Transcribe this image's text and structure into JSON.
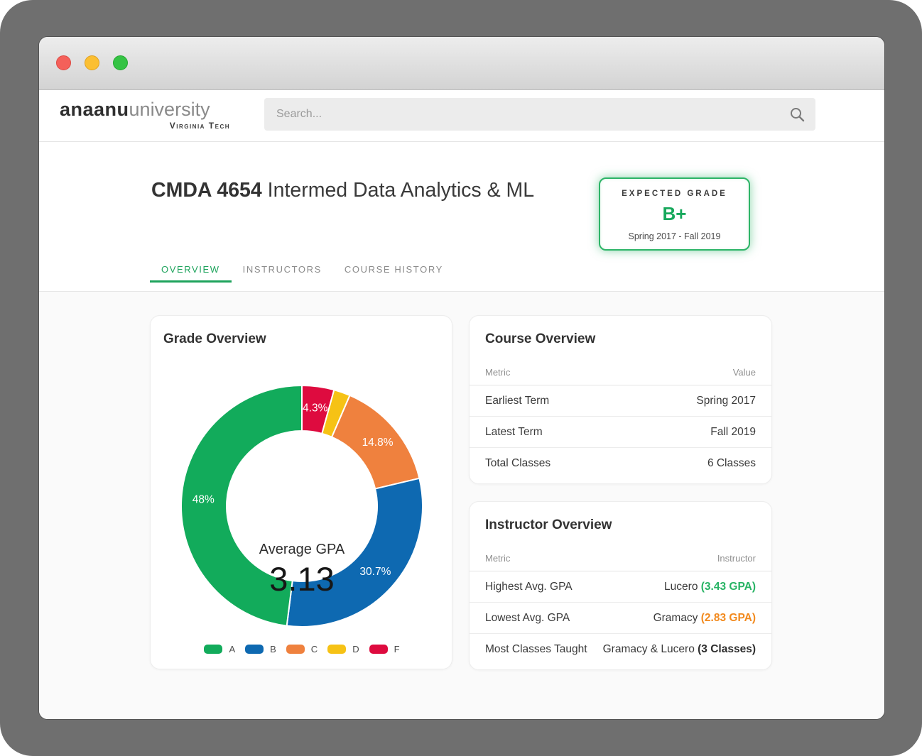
{
  "window": {
    "traffic_lights": {
      "close": "#f4605a",
      "minimize": "#fbbf32",
      "zoom": "#35c344"
    }
  },
  "header": {
    "logo": {
      "brand_bold": "anaanu",
      "brand_light": "university",
      "subtitle": "Virginia Tech"
    },
    "search": {
      "placeholder": "Search..."
    }
  },
  "hero": {
    "course_code": "CMDA 4654",
    "course_name": "Intermed Data Analytics & ML",
    "expected_grade": {
      "label": "EXPECTED GRADE",
      "grade": "B+",
      "term_range": "Spring 2017 - Fall 2019",
      "accent_color": "#17a85c"
    },
    "tabs": [
      {
        "label": "OVERVIEW",
        "active": true
      },
      {
        "label": "INSTRUCTORS",
        "active": false
      },
      {
        "label": "COURSE HISTORY",
        "active": false
      }
    ]
  },
  "cards": {
    "grade": {
      "title": "Grade Overview"
    },
    "course": {
      "title": "Course Overview",
      "columns": {
        "metric": "Metric",
        "value": "Value"
      },
      "rows": [
        {
          "metric": "Earliest Term",
          "value": "Spring 2017"
        },
        {
          "metric": "Latest Term",
          "value": "Fall 2019"
        },
        {
          "metric": "Total Classes",
          "value": "6 Classes"
        }
      ]
    },
    "instructor": {
      "title": "Instructor Overview",
      "columns": {
        "metric": "Metric",
        "value": "Instructor"
      },
      "rows": [
        {
          "metric": "Highest Avg. GPA",
          "value": "Lucero ",
          "value_accent": "(3.43 GPA)",
          "accent_color": "#27b364"
        },
        {
          "metric": "Lowest Avg. GPA",
          "value": "Gramacy ",
          "value_accent": "(2.83 GPA)",
          "accent_color": "#f28a1e"
        },
        {
          "metric": "Most Classes Taught",
          "value": "Gramacy & Lucero ",
          "value_accent": "(3 Classes)",
          "accent_color": "#2e2e2e"
        }
      ]
    }
  },
  "chart_data": {
    "type": "pie",
    "subtype": "donut",
    "title": "Grade Overview",
    "center_label": "Average GPA",
    "center_value": "3.13",
    "start_angle_deg": -90,
    "direction": "clockwise",
    "slices": [
      {
        "label": "F",
        "value": 4.3,
        "color": "#de0b3f",
        "text": "4.3%",
        "show_label": true
      },
      {
        "label": "D",
        "value": 2.2,
        "color": "#f6c215",
        "text": "",
        "show_label": false
      },
      {
        "label": "C",
        "value": 14.8,
        "color": "#ef813e",
        "text": "14.8%",
        "show_label": true
      },
      {
        "label": "B",
        "value": 30.7,
        "color": "#0e69b1",
        "text": "30.7%",
        "show_label": true
      },
      {
        "label": "A",
        "value": 48.0,
        "color": "#12ab5b",
        "text": "48%",
        "show_label": true
      }
    ],
    "legend": [
      {
        "label": "A",
        "color": "#12ab5b"
      },
      {
        "label": "B",
        "color": "#0e69b1"
      },
      {
        "label": "C",
        "color": "#ef813e"
      },
      {
        "label": "D",
        "color": "#f6c215"
      },
      {
        "label": "F",
        "color": "#de0b3f"
      }
    ],
    "legend_position": "bottom"
  }
}
